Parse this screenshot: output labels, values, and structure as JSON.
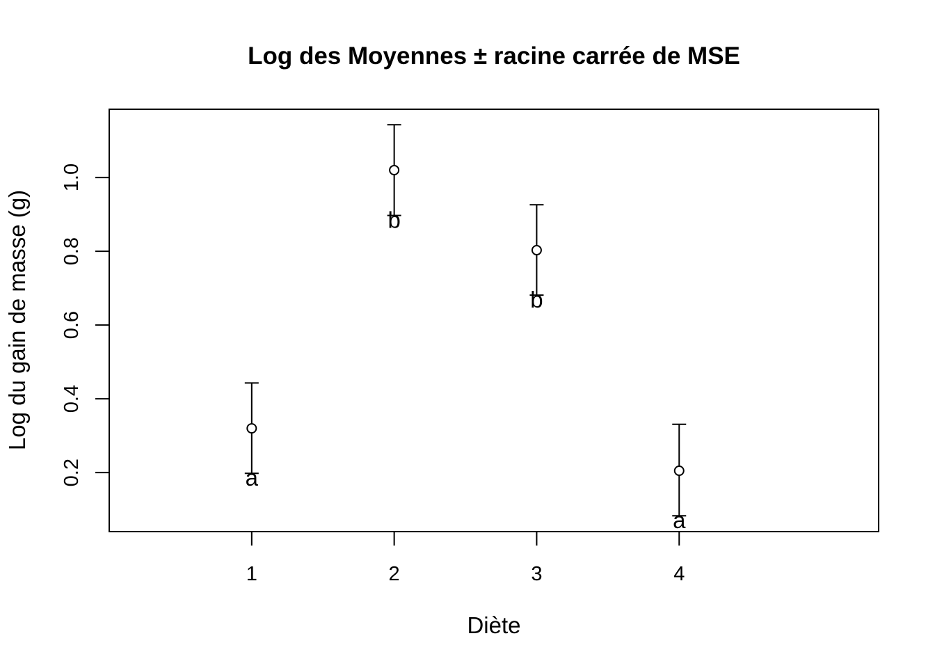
{
  "chart_data": {
    "type": "scatter",
    "title": "Log des Moyennes ± racine carrée de MSE",
    "xlabel": "Diète",
    "ylabel": "Log du gain de masse (g)",
    "xlim": [
      0,
      5.4
    ],
    "ylim": [
      0.04,
      1.185
    ],
    "x_ticks": [
      "1",
      "2",
      "3",
      "4"
    ],
    "y_ticks": [
      "0.2",
      "0.4",
      "0.6",
      "0.8",
      "1.0"
    ],
    "grid": false,
    "legend": "none",
    "points": [
      {
        "x": 1,
        "mean": 0.32,
        "lower": 0.198,
        "upper": 0.443,
        "group": "a"
      },
      {
        "x": 2,
        "mean": 1.02,
        "lower": 0.897,
        "upper": 1.143,
        "group": "b"
      },
      {
        "x": 3,
        "mean": 0.803,
        "lower": 0.681,
        "upper": 0.926,
        "group": "b"
      },
      {
        "x": 4,
        "mean": 0.205,
        "lower": 0.083,
        "upper": 0.331,
        "group": "a"
      }
    ],
    "colors": {
      "marks": "#000000",
      "background": "#ffffff"
    }
  }
}
